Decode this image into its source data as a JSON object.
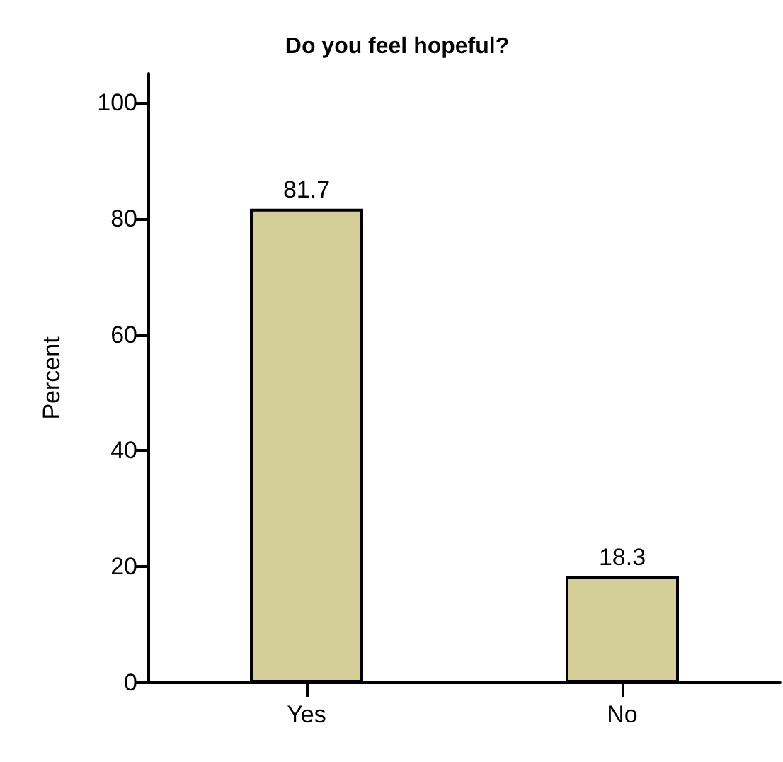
{
  "chart_data": {
    "type": "bar",
    "title": "Do you feel hopeful?",
    "ylabel": "Percent",
    "categories": [
      "Yes",
      "No"
    ],
    "values": [
      81.7,
      18.3
    ],
    "color": "#d4cf98",
    "ylim": [
      0,
      105
    ],
    "yticks": [
      0,
      20,
      40,
      60,
      80,
      100
    ],
    "data_labels": true,
    "grid": false
  }
}
